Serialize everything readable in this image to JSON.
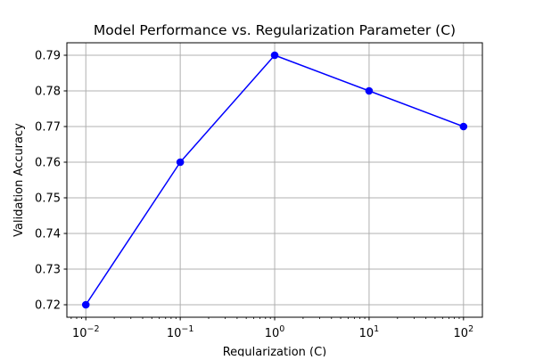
{
  "chart_data": {
    "type": "line",
    "title": "Model Performance vs. Regularization Parameter (C)",
    "xlabel": "Regularization (C)",
    "ylabel": "Validation Accuracy",
    "xscale": "log",
    "xlim": [
      0.0063,
      158.5
    ],
    "ylim": [
      0.7165,
      0.7935
    ],
    "grid": true,
    "x": [
      0.01,
      0.1,
      1,
      10,
      100
    ],
    "x_tick_labels": [
      {
        "value": 0.01,
        "base": "10",
        "exp": "−2"
      },
      {
        "value": 0.1,
        "base": "10",
        "exp": "−1"
      },
      {
        "value": 1,
        "base": "10",
        "exp": "0"
      },
      {
        "value": 10,
        "base": "10",
        "exp": "1"
      },
      {
        "value": 100,
        "base": "10",
        "exp": "2"
      }
    ],
    "y_ticks": [
      0.72,
      0.73,
      0.74,
      0.75,
      0.76,
      0.77,
      0.78,
      0.79
    ],
    "y_tick_labels": [
      "0.72",
      "0.73",
      "0.74",
      "0.75",
      "0.76",
      "0.77",
      "0.78",
      "0.79"
    ],
    "series": [
      {
        "values": [
          0.72,
          0.76,
          0.79,
          0.78,
          0.77
        ],
        "color": "#0000ff",
        "marker": "circle"
      }
    ]
  }
}
